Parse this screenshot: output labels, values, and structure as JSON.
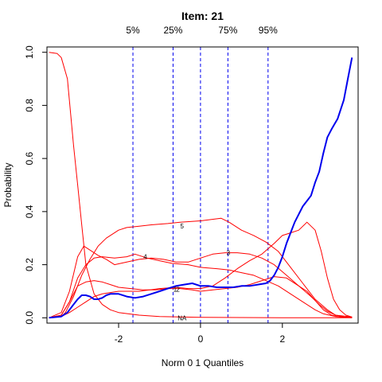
{
  "chart_data": {
    "type": "line",
    "title": "Item:  21",
    "xlabel": "Norm 0 1 Quantiles",
    "ylabel": "Probability",
    "xlim": [
      -3.75,
      3.85
    ],
    "ylim": [
      -0.02,
      1.02
    ],
    "x_ticks": [
      -2,
      0,
      2
    ],
    "x_tick_labels": [
      "-2",
      "0",
      "2"
    ],
    "y_ticks": [
      0.0,
      0.2,
      0.4,
      0.6,
      0.8,
      1.0
    ],
    "y_tick_labels": [
      "0.0",
      "0.2",
      "0.4",
      "0.6",
      "0.8",
      "1.0"
    ],
    "quantile_lines": [
      {
        "label": "5%",
        "x": -1.65
      },
      {
        "label": "25%",
        "x": -0.67
      },
      {
        "label": "",
        "x": 0.0
      },
      {
        "label": "75%",
        "x": 0.67
      },
      {
        "label": "95%",
        "x": 1.65
      }
    ],
    "colors": {
      "options": "#ff0000",
      "item": "#0000ee",
      "quantile": "#0000ee"
    },
    "series": [
      {
        "label": "NA",
        "color": "#ff0000",
        "width": 1,
        "label_at": [
          -0.45,
          0.0
        ],
        "x": [
          -3.7,
          -3.5,
          -3.4,
          -3.25,
          -3.1,
          -3.0,
          -2.9,
          -2.8,
          -2.6,
          -2.4,
          -2.2,
          -2.0,
          -1.5,
          -1.0,
          -0.5,
          0.0,
          1.0,
          2.0,
          3.0,
          3.7
        ],
        "y": [
          1.0,
          0.995,
          0.98,
          0.9,
          0.65,
          0.5,
          0.35,
          0.2,
          0.09,
          0.05,
          0.03,
          0.02,
          0.01,
          0.005,
          0.003,
          0.002,
          0.001,
          0.0,
          0.0,
          0.0
        ]
      },
      {
        "label": "5",
        "color": "#ff0000",
        "width": 1,
        "label_at": [
          -0.45,
          0.345
        ],
        "x": [
          -3.7,
          -3.4,
          -3.3,
          -3.1,
          -2.9,
          -2.7,
          -2.5,
          -2.3,
          -2.0,
          -1.8,
          -1.5,
          -1.2,
          -0.8,
          -0.5,
          0.0,
          0.5,
          0.7,
          1.0,
          1.3,
          1.6,
          1.9,
          2.2,
          2.5,
          2.8,
          3.1,
          3.3,
          3.7
        ],
        "y": [
          0.0,
          0.005,
          0.02,
          0.08,
          0.16,
          0.22,
          0.27,
          0.3,
          0.33,
          0.34,
          0.345,
          0.35,
          0.355,
          0.36,
          0.365,
          0.375,
          0.36,
          0.33,
          0.31,
          0.285,
          0.25,
          0.19,
          0.13,
          0.07,
          0.03,
          0.01,
          0.003
        ]
      },
      {
        "label": "4",
        "color": "#ff0000",
        "width": 1,
        "label_at": [
          -1.35,
          0.23
        ],
        "x": [
          -3.7,
          -3.4,
          -3.2,
          -3.0,
          -2.8,
          -2.6,
          -2.4,
          -2.1,
          -1.8,
          -1.6,
          -1.3,
          -1.0,
          -0.7,
          -0.3,
          0.0,
          0.4,
          0.7,
          1.0,
          1.3,
          1.6,
          1.9,
          2.2,
          2.5,
          2.8,
          3.0,
          3.3,
          3.7
        ],
        "y": [
          0.0,
          0.01,
          0.06,
          0.15,
          0.2,
          0.225,
          0.23,
          0.225,
          0.23,
          0.24,
          0.225,
          0.215,
          0.205,
          0.2,
          0.19,
          0.185,
          0.18,
          0.17,
          0.16,
          0.14,
          0.12,
          0.09,
          0.06,
          0.03,
          0.015,
          0.005,
          0.001
        ]
      },
      {
        "label": "3",
        "color": "#ff0000",
        "width": 1,
        "label_at": [
          0.68,
          0.245
        ],
        "x": [
          -3.7,
          -3.4,
          -3.2,
          -3.0,
          -2.85,
          -2.7,
          -2.5,
          -2.3,
          -2.1,
          -1.8,
          -1.5,
          -1.2,
          -0.9,
          -0.6,
          -0.3,
          0.0,
          0.3,
          0.6,
          0.9,
          1.2,
          1.5,
          1.8,
          2.1,
          2.4,
          2.6,
          2.8,
          3.0,
          3.2,
          3.4,
          3.7
        ],
        "y": [
          0.0,
          0.02,
          0.1,
          0.23,
          0.27,
          0.255,
          0.235,
          0.22,
          0.2,
          0.21,
          0.22,
          0.225,
          0.22,
          0.21,
          0.21,
          0.225,
          0.24,
          0.245,
          0.245,
          0.24,
          0.225,
          0.2,
          0.16,
          0.12,
          0.1,
          0.065,
          0.03,
          0.01,
          0.003,
          0.0
        ]
      },
      {
        "label": "2",
        "color": "#ff0000",
        "width": 1,
        "label_at": [
          -0.55,
          0.108
        ],
        "x": [
          -3.7,
          -3.4,
          -3.2,
          -3.0,
          -2.8,
          -2.6,
          -2.4,
          -2.2,
          -2.0,
          -1.7,
          -1.4,
          -1.1,
          -0.8,
          -0.5,
          -0.2,
          0.0,
          0.3,
          0.6,
          0.9,
          1.2,
          1.5,
          1.8,
          2.1,
          2.4,
          2.7,
          2.9,
          3.1,
          3.3,
          3.5,
          3.7
        ],
        "y": [
          0.0,
          0.01,
          0.06,
          0.12,
          0.135,
          0.14,
          0.135,
          0.125,
          0.115,
          0.11,
          0.105,
          0.105,
          0.11,
          0.11,
          0.105,
          0.1,
          0.105,
          0.11,
          0.115,
          0.125,
          0.14,
          0.155,
          0.15,
          0.12,
          0.08,
          0.05,
          0.025,
          0.01,
          0.003,
          0.0
        ]
      },
      {
        "label": "1",
        "color": "#ff0000",
        "width": 1,
        "label_at": [
          -0.62,
          0.108
        ],
        "x": [
          -3.7,
          -3.4,
          -3.2,
          -3.0,
          -2.8,
          -2.6,
          -2.4,
          -2.0,
          -1.5,
          -1.0,
          -0.6,
          -0.3,
          0.0,
          0.3,
          0.6,
          0.9,
          1.2,
          1.5,
          1.8,
          2.0,
          2.2,
          2.4,
          2.6,
          2.8,
          2.95,
          3.1,
          3.25,
          3.4,
          3.55,
          3.7
        ],
        "y": [
          0.0,
          0.005,
          0.02,
          0.04,
          0.06,
          0.08,
          0.09,
          0.1,
          0.1,
          0.11,
          0.115,
          0.11,
          0.11,
          0.12,
          0.15,
          0.185,
          0.215,
          0.24,
          0.28,
          0.31,
          0.32,
          0.33,
          0.36,
          0.33,
          0.25,
          0.15,
          0.07,
          0.03,
          0.01,
          0.003
        ]
      },
      {
        "label": "",
        "color": "#0000ee",
        "width": 2,
        "label_at": null,
        "x": [
          -3.7,
          -3.4,
          -3.25,
          -3.1,
          -3.0,
          -2.9,
          -2.8,
          -2.7,
          -2.6,
          -2.5,
          -2.4,
          -2.3,
          -2.2,
          -2.0,
          -1.8,
          -1.6,
          -1.4,
          -1.2,
          -1.0,
          -0.8,
          -0.6,
          -0.4,
          -0.2,
          0.0,
          0.2,
          0.4,
          0.6,
          0.8,
          1.0,
          1.2,
          1.4,
          1.6,
          1.7,
          1.8,
          1.9,
          2.0,
          2.1,
          2.2,
          2.3,
          2.4,
          2.5,
          2.6,
          2.7,
          2.8,
          2.9,
          3.0,
          3.1,
          3.2,
          3.35,
          3.5,
          3.6,
          3.7
        ],
        "y": [
          0.0,
          0.005,
          0.02,
          0.05,
          0.07,
          0.085,
          0.085,
          0.08,
          0.07,
          0.07,
          0.075,
          0.085,
          0.09,
          0.09,
          0.08,
          0.075,
          0.08,
          0.09,
          0.1,
          0.11,
          0.12,
          0.125,
          0.13,
          0.12,
          0.12,
          0.115,
          0.115,
          0.115,
          0.12,
          0.12,
          0.125,
          0.13,
          0.14,
          0.16,
          0.19,
          0.23,
          0.28,
          0.32,
          0.36,
          0.39,
          0.42,
          0.44,
          0.46,
          0.51,
          0.55,
          0.62,
          0.68,
          0.71,
          0.75,
          0.82,
          0.9,
          0.98
        ]
      }
    ]
  }
}
